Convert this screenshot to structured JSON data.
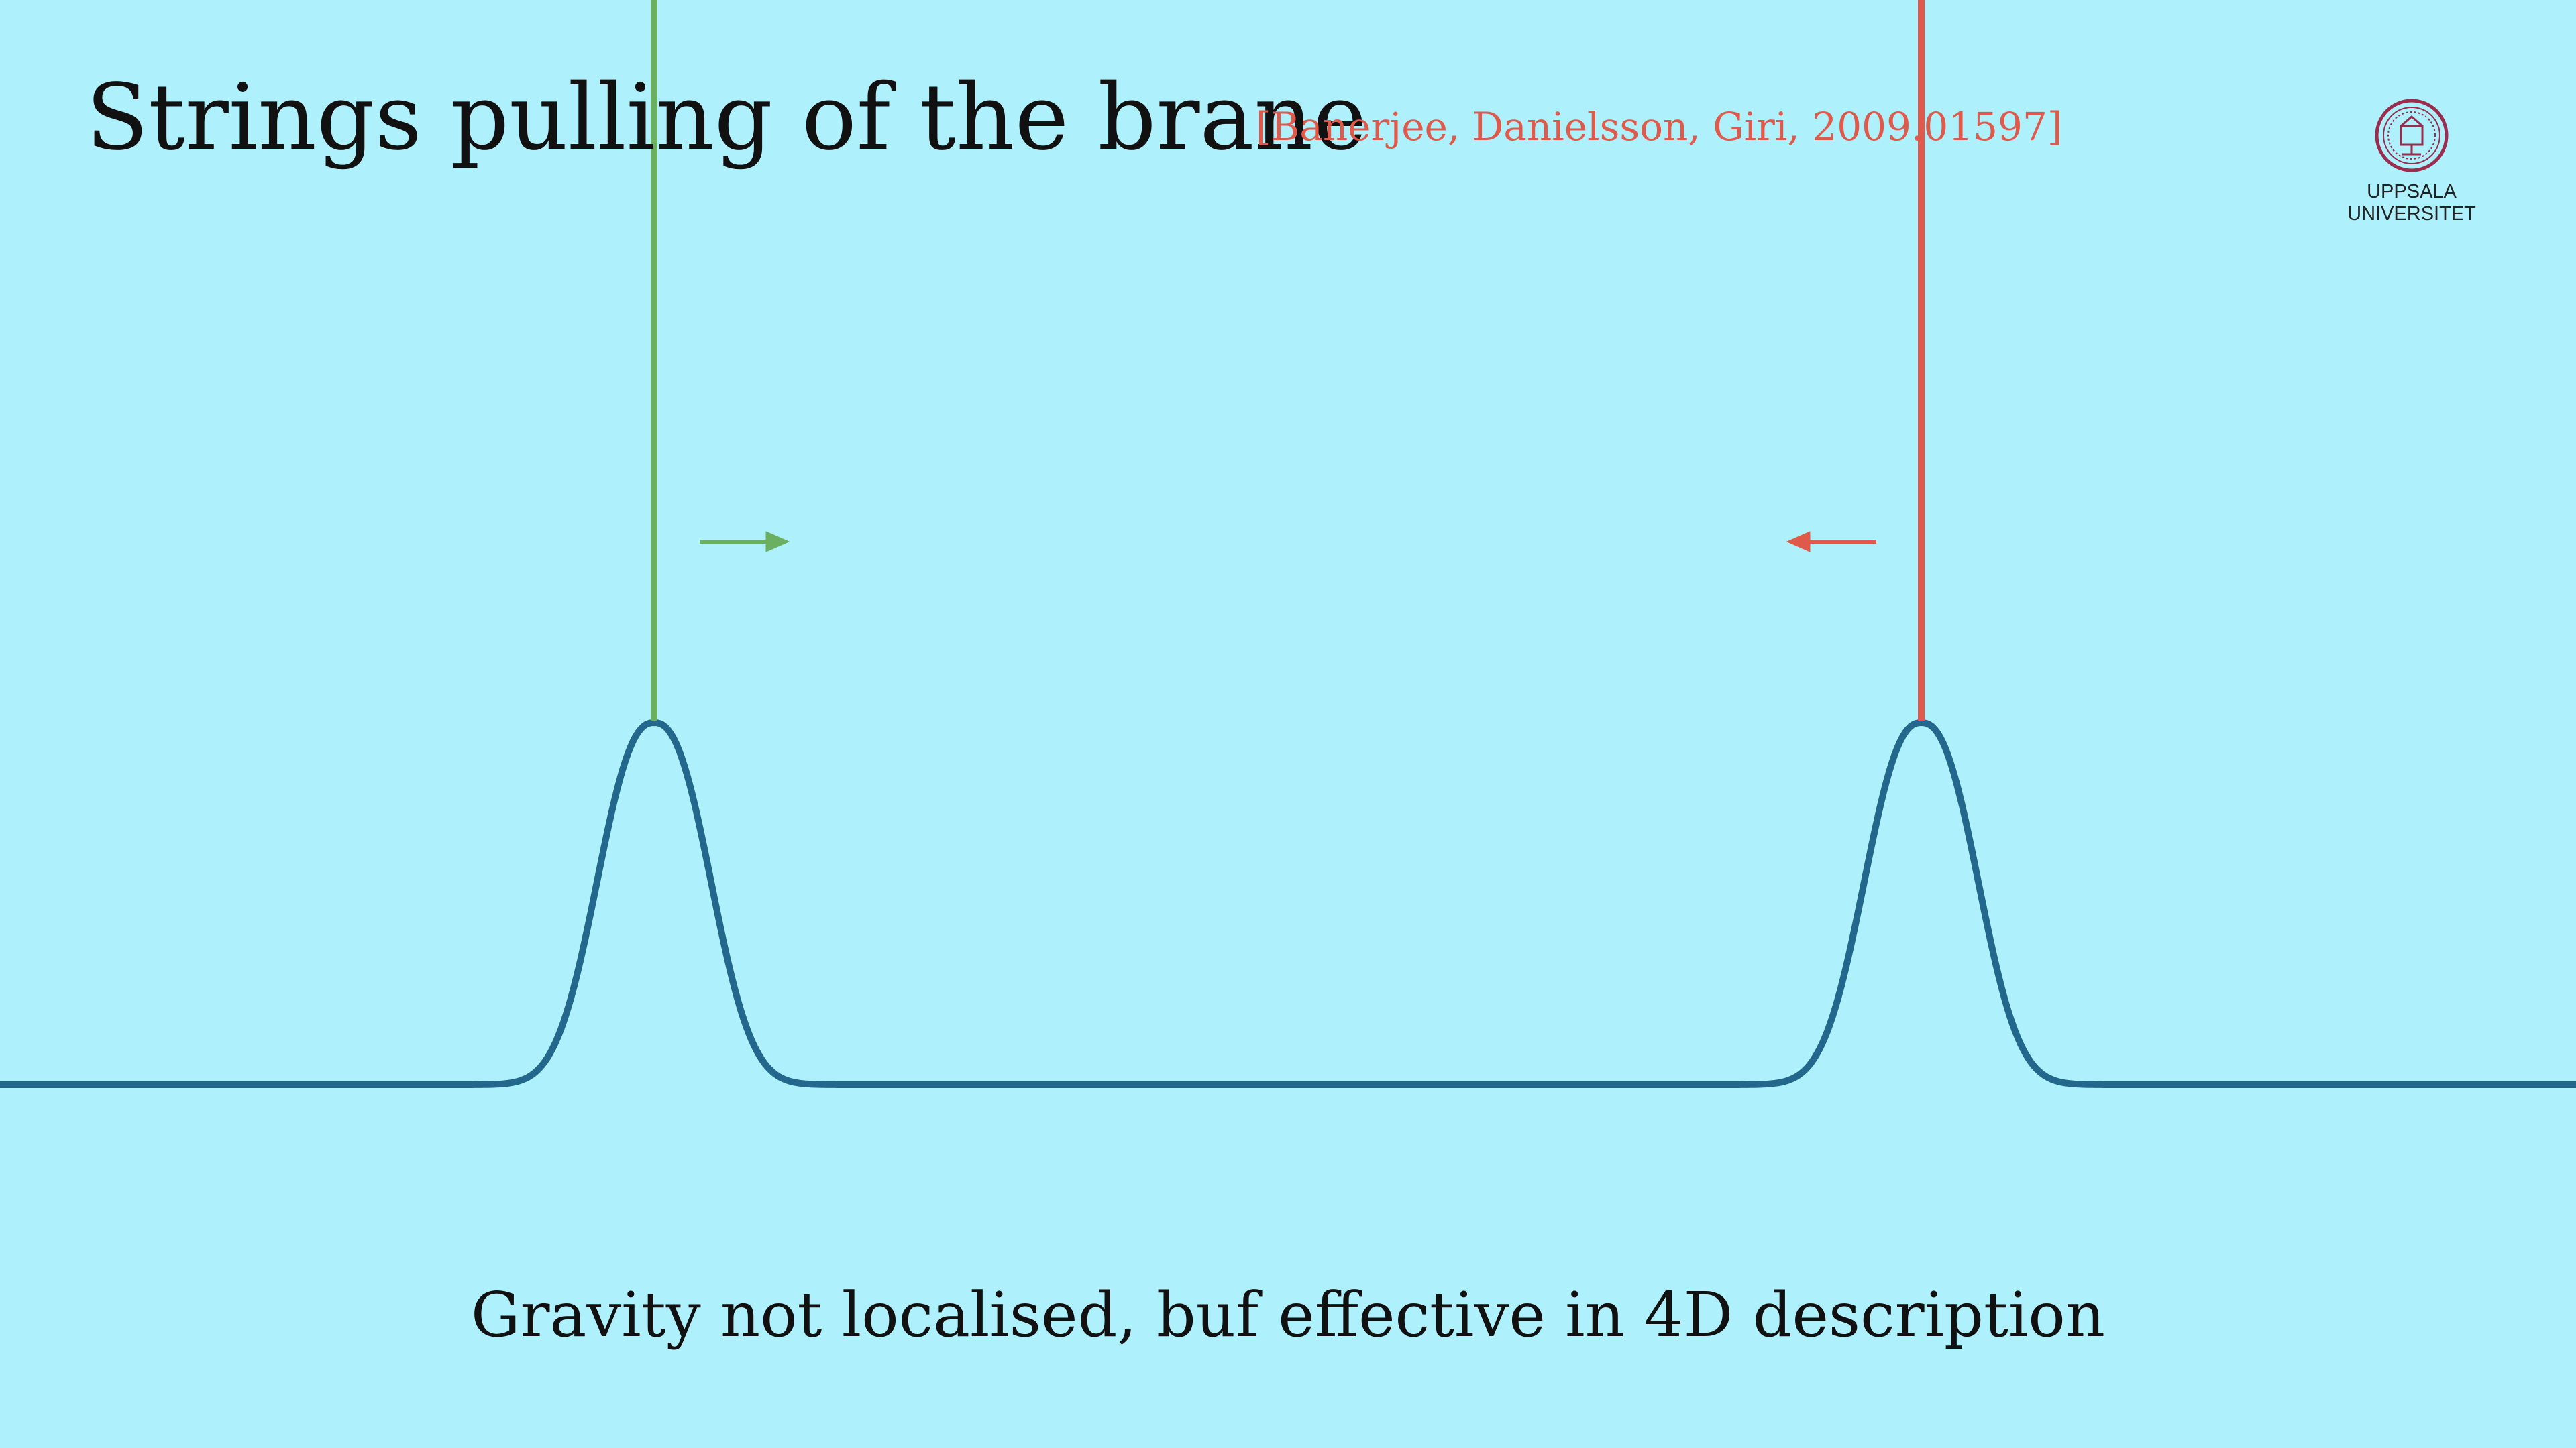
{
  "slide": {
    "title": "Strings pulling of the brane",
    "citation": "[Banerjee, Danielsson, Giri, 2009.01597]",
    "caption": "Gravity not localised, buf effective in 4D description",
    "logo": {
      "text": "UPPSALA\nUNIVERSITET",
      "icon": "university-seal"
    }
  },
  "colors": {
    "background": "#aef0fb",
    "brane": "#23678c",
    "left_string": "#6ab060",
    "right_string": "#e05a4b",
    "text": "#111111",
    "seal": "#9b2c4d"
  },
  "diagram": {
    "strings": [
      {
        "name": "left-string",
        "direction": "right"
      },
      {
        "name": "right-string",
        "direction": "left"
      }
    ]
  }
}
